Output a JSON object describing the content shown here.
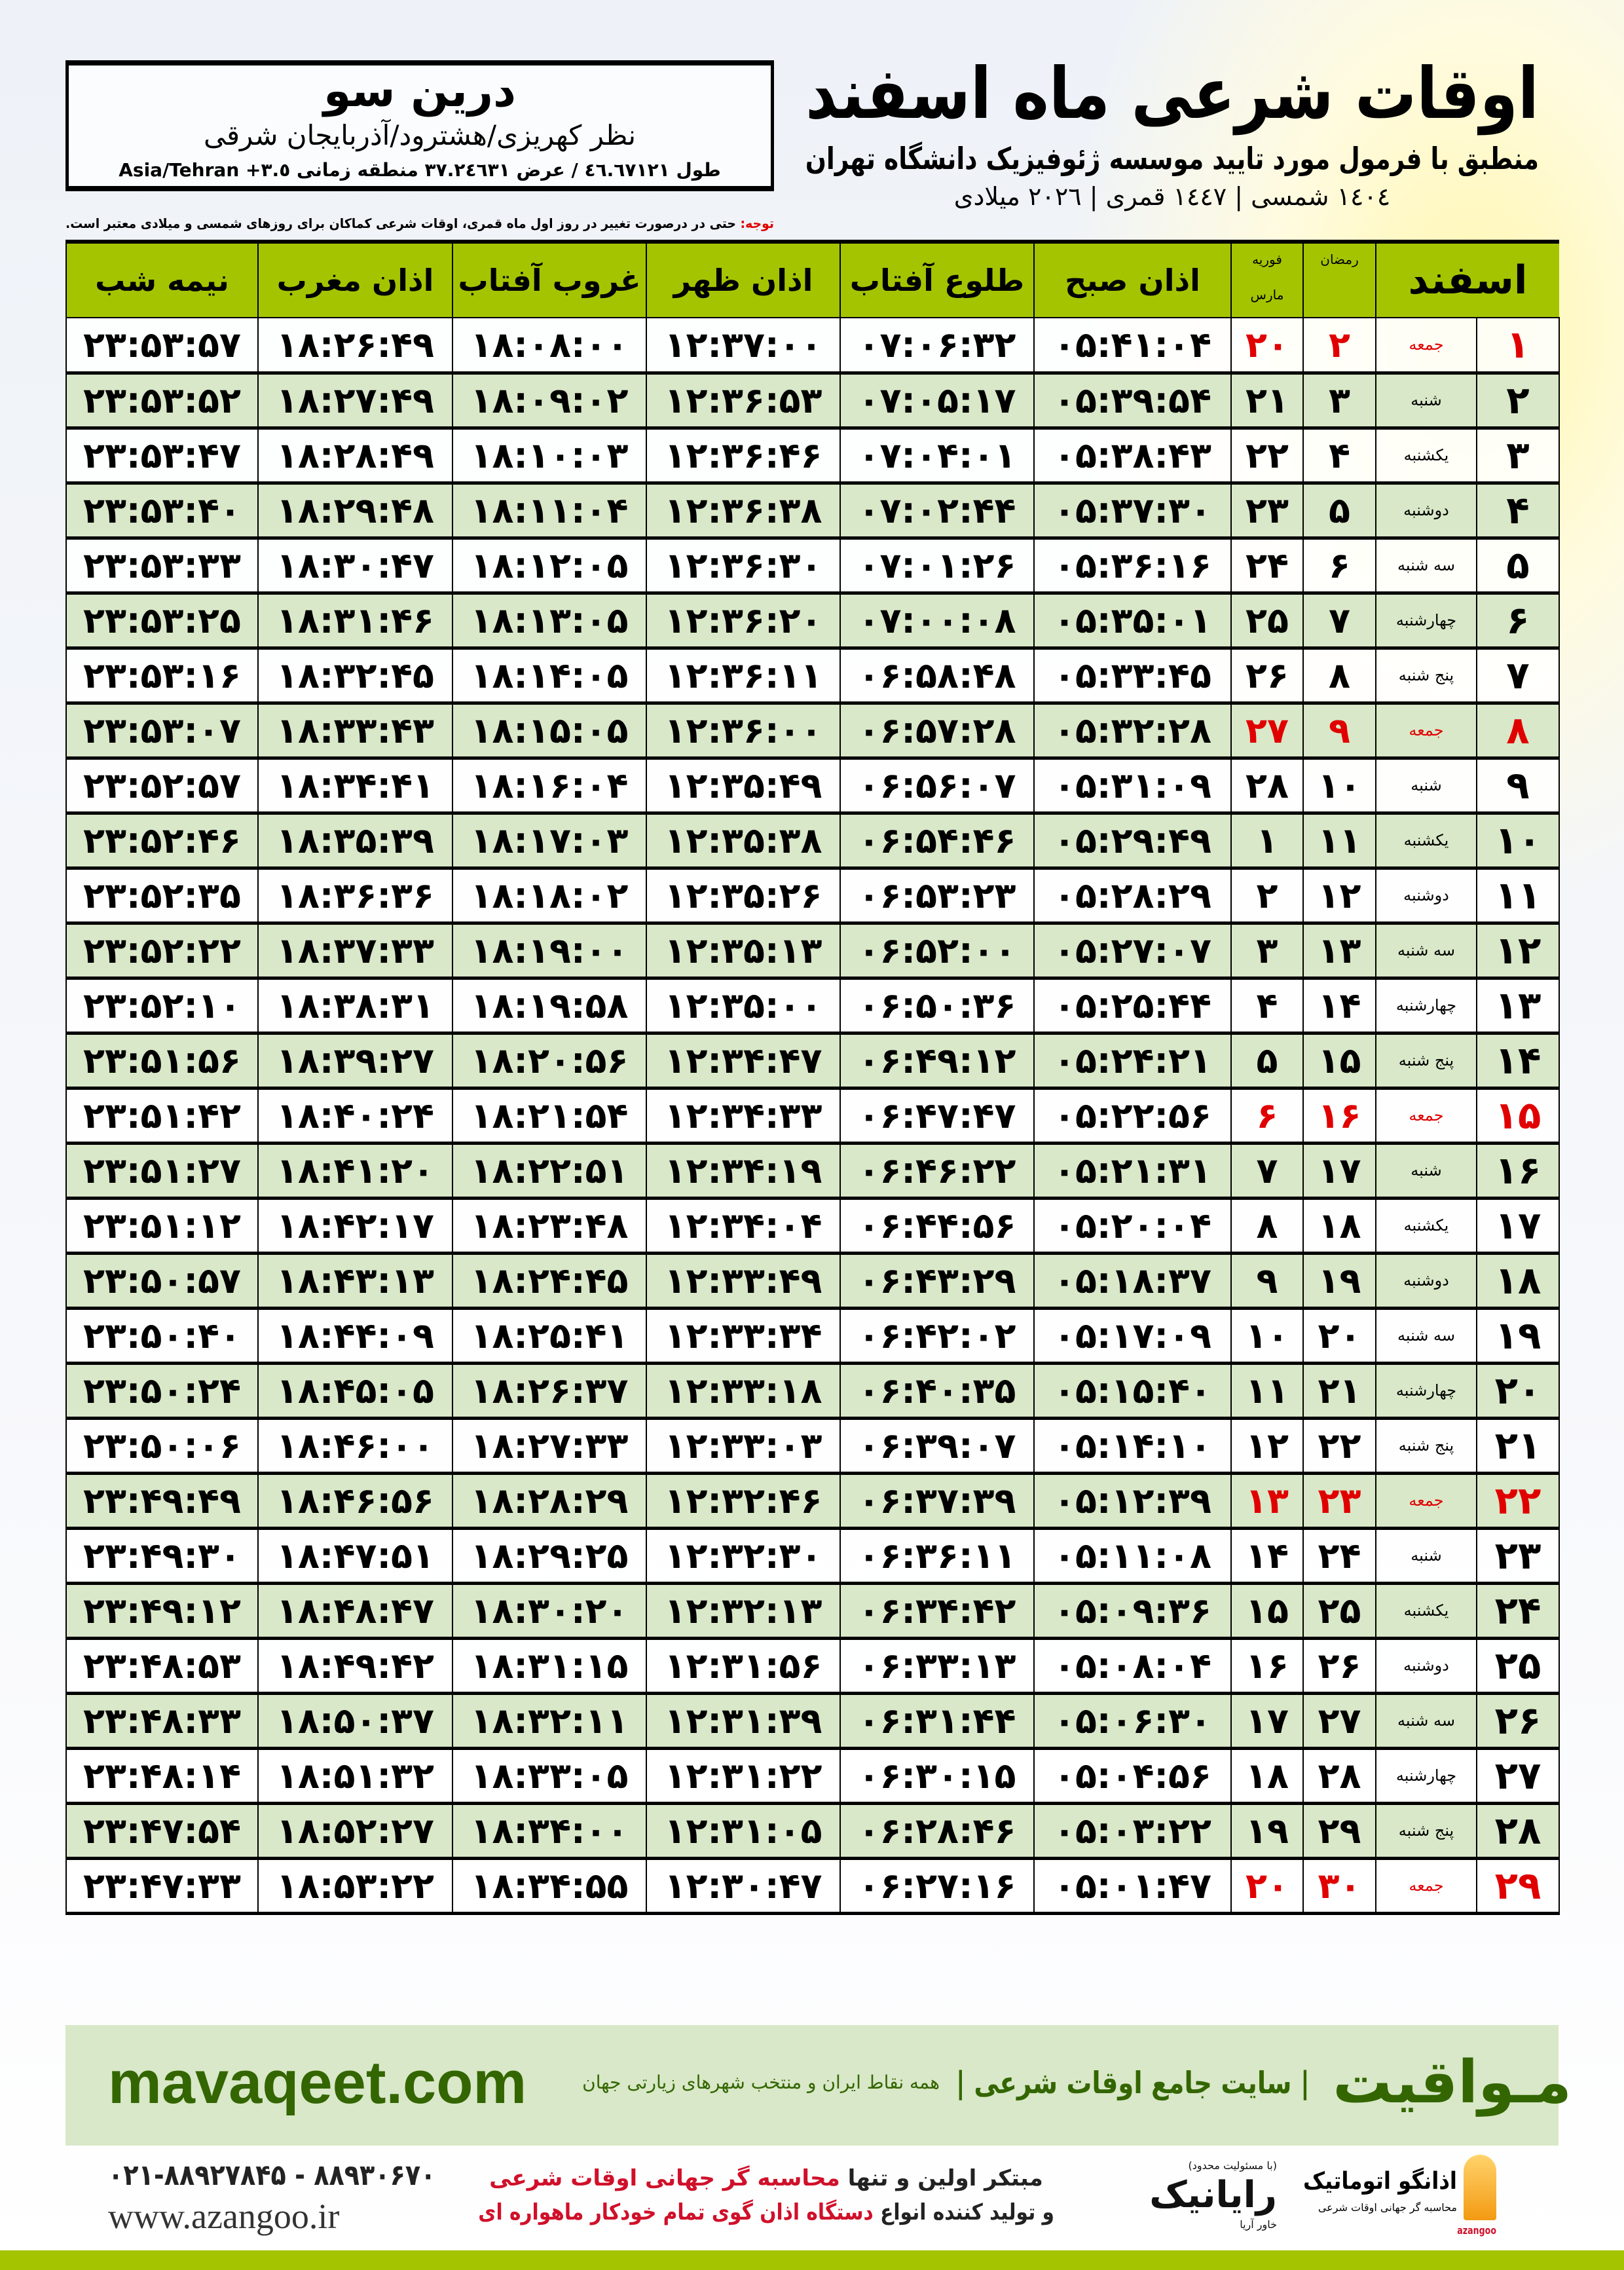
{
  "header": {
    "title": "اوقات شرعی ماه اسفند",
    "subtitle": "منطبق با فرمول مورد تایید موسسه ژئوفیزیک دانشگاه تهران",
    "years": "١٤٠٤ شمسی | ١٤٤٧ قمری | ٢٠٢٦ میلادی"
  },
  "location": {
    "name": "درین سو",
    "path": "نظر کهریزی/هشترود/آذربایجان شرقی",
    "coords": "طول ٤٦.٦٧١٢١ / عرض ٣٧.٢٤٦٣١ منطقه زمانی ٣.٥+ Asia/Tehran"
  },
  "note": {
    "label": "توجه:",
    "text": " حتی در درصورت تغییر در روز اول ماه قمری، اوقات شرعی کماکان برای روزهای شمسی و میلادی معتبر است."
  },
  "table": {
    "headers": {
      "month": "اسفند",
      "ramadan": "رمضان",
      "greg_top": "فوریه",
      "greg_bottom": "مارس",
      "fajr": "اذان صبح",
      "sunrise": "طلوع آفتاب",
      "dhuhr": "اذان ظهر",
      "sunset": "غروب آفتاب",
      "maghrib": "اذان مغرب",
      "midnight": "نیمه شب"
    },
    "holiday_color": "#e00000",
    "header_color": "#a5c400",
    "alt_row_color": "#d9e8c8",
    "rows": [
      [
        "۱",
        "جمعه",
        "۲",
        "۲۰",
        "۰۵:۴۱:۰۴",
        "۰۷:۰۶:۳۲",
        "۱۲:۳۷:۰۰",
        "۱۸:۰۸:۰۰",
        "۱۸:۲۶:۴۹",
        "۲۳:۵۳:۵۷"
      ],
      [
        "۲",
        "شنبه",
        "۳",
        "۲۱",
        "۰۵:۳۹:۵۴",
        "۰۷:۰۵:۱۷",
        "۱۲:۳۶:۵۳",
        "۱۸:۰۹:۰۲",
        "۱۸:۲۷:۴۹",
        "۲۳:۵۳:۵۲"
      ],
      [
        "۳",
        "یکشنبه",
        "۴",
        "۲۲",
        "۰۵:۳۸:۴۳",
        "۰۷:۰۴:۰۱",
        "۱۲:۳۶:۴۶",
        "۱۸:۱۰:۰۳",
        "۱۸:۲۸:۴۹",
        "۲۳:۵۳:۴۷"
      ],
      [
        "۴",
        "دوشنبه",
        "۵",
        "۲۳",
        "۰۵:۳۷:۳۰",
        "۰۷:۰۲:۴۴",
        "۱۲:۳۶:۳۸",
        "۱۸:۱۱:۰۴",
        "۱۸:۲۹:۴۸",
        "۲۳:۵۳:۴۰"
      ],
      [
        "۵",
        "سه شنبه",
        "۶",
        "۲۴",
        "۰۵:۳۶:۱۶",
        "۰۷:۰۱:۲۶",
        "۱۲:۳۶:۳۰",
        "۱۸:۱۲:۰۵",
        "۱۸:۳۰:۴۷",
        "۲۳:۵۳:۳۳"
      ],
      [
        "۶",
        "چهارشنبه",
        "۷",
        "۲۵",
        "۰۵:۳۵:۰۱",
        "۰۷:۰۰:۰۸",
        "۱۲:۳۶:۲۰",
        "۱۸:۱۳:۰۵",
        "۱۸:۳۱:۴۶",
        "۲۳:۵۳:۲۵"
      ],
      [
        "۷",
        "پنج شنبه",
        "۸",
        "۲۶",
        "۰۵:۳۳:۴۵",
        "۰۶:۵۸:۴۸",
        "۱۲:۳۶:۱۱",
        "۱۸:۱۴:۰۵",
        "۱۸:۳۲:۴۵",
        "۲۳:۵۳:۱۶"
      ],
      [
        "۸",
        "جمعه",
        "۹",
        "۲۷",
        "۰۵:۳۲:۲۸",
        "۰۶:۵۷:۲۸",
        "۱۲:۳۶:۰۰",
        "۱۸:۱۵:۰۵",
        "۱۸:۳۳:۴۳",
        "۲۳:۵۳:۰۷"
      ],
      [
        "۹",
        "شنبه",
        "۱۰",
        "۲۸",
        "۰۵:۳۱:۰۹",
        "۰۶:۵۶:۰۷",
        "۱۲:۳۵:۴۹",
        "۱۸:۱۶:۰۴",
        "۱۸:۳۴:۴۱",
        "۲۳:۵۲:۵۷"
      ],
      [
        "۱۰",
        "یکشنبه",
        "۱۱",
        "۱",
        "۰۵:۲۹:۴۹",
        "۰۶:۵۴:۴۶",
        "۱۲:۳۵:۳۸",
        "۱۸:۱۷:۰۳",
        "۱۸:۳۵:۳۹",
        "۲۳:۵۲:۴۶"
      ],
      [
        "۱۱",
        "دوشنبه",
        "۱۲",
        "۲",
        "۰۵:۲۸:۲۹",
        "۰۶:۵۳:۲۳",
        "۱۲:۳۵:۲۶",
        "۱۸:۱۸:۰۲",
        "۱۸:۳۶:۳۶",
        "۲۳:۵۲:۳۵"
      ],
      [
        "۱۲",
        "سه شنبه",
        "۱۳",
        "۳",
        "۰۵:۲۷:۰۷",
        "۰۶:۵۲:۰۰",
        "۱۲:۳۵:۱۳",
        "۱۸:۱۹:۰۰",
        "۱۸:۳۷:۳۳",
        "۲۳:۵۲:۲۲"
      ],
      [
        "۱۳",
        "چهارشنبه",
        "۱۴",
        "۴",
        "۰۵:۲۵:۴۴",
        "۰۶:۵۰:۳۶",
        "۱۲:۳۵:۰۰",
        "۱۸:۱۹:۵۸",
        "۱۸:۳۸:۳۱",
        "۲۳:۵۲:۱۰"
      ],
      [
        "۱۴",
        "پنج شنبه",
        "۱۵",
        "۵",
        "۰۵:۲۴:۲۱",
        "۰۶:۴۹:۱۲",
        "۱۲:۳۴:۴۷",
        "۱۸:۲۰:۵۶",
        "۱۸:۳۹:۲۷",
        "۲۳:۵۱:۵۶"
      ],
      [
        "۱۵",
        "جمعه",
        "۱۶",
        "۶",
        "۰۵:۲۲:۵۶",
        "۰۶:۴۷:۴۷",
        "۱۲:۳۴:۳۳",
        "۱۸:۲۱:۵۴",
        "۱۸:۴۰:۲۴",
        "۲۳:۵۱:۴۲"
      ],
      [
        "۱۶",
        "شنبه",
        "۱۷",
        "۷",
        "۰۵:۲۱:۳۱",
        "۰۶:۴۶:۲۲",
        "۱۲:۳۴:۱۹",
        "۱۸:۲۲:۵۱",
        "۱۸:۴۱:۲۰",
        "۲۳:۵۱:۲۷"
      ],
      [
        "۱۷",
        "یکشنبه",
        "۱۸",
        "۸",
        "۰۵:۲۰:۰۴",
        "۰۶:۴۴:۵۶",
        "۱۲:۳۴:۰۴",
        "۱۸:۲۳:۴۸",
        "۱۸:۴۲:۱۷",
        "۲۳:۵۱:۱۲"
      ],
      [
        "۱۸",
        "دوشنبه",
        "۱۹",
        "۹",
        "۰۵:۱۸:۳۷",
        "۰۶:۴۳:۲۹",
        "۱۲:۳۳:۴۹",
        "۱۸:۲۴:۴۵",
        "۱۸:۴۳:۱۳",
        "۲۳:۵۰:۵۷"
      ],
      [
        "۱۹",
        "سه شنبه",
        "۲۰",
        "۱۰",
        "۰۵:۱۷:۰۹",
        "۰۶:۴۲:۰۲",
        "۱۲:۳۳:۳۴",
        "۱۸:۲۵:۴۱",
        "۱۸:۴۴:۰۹",
        "۲۳:۵۰:۴۰"
      ],
      [
        "۲۰",
        "چهارشنبه",
        "۲۱",
        "۱۱",
        "۰۵:۱۵:۴۰",
        "۰۶:۴۰:۳۵",
        "۱۲:۳۳:۱۸",
        "۱۸:۲۶:۳۷",
        "۱۸:۴۵:۰۵",
        "۲۳:۵۰:۲۴"
      ],
      [
        "۲۱",
        "پنج شنبه",
        "۲۲",
        "۱۲",
        "۰۵:۱۴:۱۰",
        "۰۶:۳۹:۰۷",
        "۱۲:۳۳:۰۳",
        "۱۸:۲۷:۳۳",
        "۱۸:۴۶:۰۰",
        "۲۳:۵۰:۰۶"
      ],
      [
        "۲۲",
        "جمعه",
        "۲۳",
        "۱۳",
        "۰۵:۱۲:۳۹",
        "۰۶:۳۷:۳۹",
        "۱۲:۳۲:۴۶",
        "۱۸:۲۸:۲۹",
        "۱۸:۴۶:۵۶",
        "۲۳:۴۹:۴۹"
      ],
      [
        "۲۳",
        "شنبه",
        "۲۴",
        "۱۴",
        "۰۵:۱۱:۰۸",
        "۰۶:۳۶:۱۱",
        "۱۲:۳۲:۳۰",
        "۱۸:۲۹:۲۵",
        "۱۸:۴۷:۵۱",
        "۲۳:۴۹:۳۰"
      ],
      [
        "۲۴",
        "یکشنبه",
        "۲۵",
        "۱۵",
        "۰۵:۰۹:۳۶",
        "۰۶:۳۴:۴۲",
        "۱۲:۳۲:۱۳",
        "۱۸:۳۰:۲۰",
        "۱۸:۴۸:۴۷",
        "۲۳:۴۹:۱۲"
      ],
      [
        "۲۵",
        "دوشنبه",
        "۲۶",
        "۱۶",
        "۰۵:۰۸:۰۴",
        "۰۶:۳۳:۱۳",
        "۱۲:۳۱:۵۶",
        "۱۸:۳۱:۱۵",
        "۱۸:۴۹:۴۲",
        "۲۳:۴۸:۵۳"
      ],
      [
        "۲۶",
        "سه شنبه",
        "۲۷",
        "۱۷",
        "۰۵:۰۶:۳۰",
        "۰۶:۳۱:۴۴",
        "۱۲:۳۱:۳۹",
        "۱۸:۳۲:۱۱",
        "۱۸:۵۰:۳۷",
        "۲۳:۴۸:۳۳"
      ],
      [
        "۲۷",
        "چهارشنبه",
        "۲۸",
        "۱۸",
        "۰۵:۰۴:۵۶",
        "۰۶:۳۰:۱۵",
        "۱۲:۳۱:۲۲",
        "۱۸:۳۳:۰۵",
        "۱۸:۵۱:۳۲",
        "۲۳:۴۸:۱۴"
      ],
      [
        "۲۸",
        "پنج شنبه",
        "۲۹",
        "۱۹",
        "۰۵:۰۳:۲۲",
        "۰۶:۲۸:۴۶",
        "۱۲:۳۱:۰۵",
        "۱۸:۳۴:۰۰",
        "۱۸:۵۲:۲۷",
        "۲۳:۴۷:۵۴"
      ],
      [
        "۲۹",
        "جمعه",
        "۳۰",
        "۲۰",
        "۰۵:۰۱:۴۷",
        "۰۶:۲۷:۱۶",
        "۱۲:۳۰:۴۷",
        "۱۸:۳۴:۵۵",
        "۱۸:۵۳:۲۲",
        "۲۳:۴۷:۳۳"
      ]
    ]
  },
  "footer": {
    "site_name": "مـواقیت",
    "site_tag": "| سایت جامع اوقات شرعی |",
    "site_tag2": "همه نقاط ایران و منتخب شهرهای زیارتی جهان",
    "site_url": "mavaqeet.com",
    "phone": "۰۲۱-۸۸۹۲۷۸۴۵ - ۸۸۹۳۰۶۷۰",
    "web": "www.azangoo.ir",
    "promo_1a": "مبتکر اولین و تنها ",
    "promo_1b": "محاسبه گر جهانی اوقات شرعی",
    "promo_2a": "و تولید کننده انواع ",
    "promo_2b": "دستگاه اذان گوی تمام خودکار ماهواره ای",
    "rayanik_note": "(با مسئولیت محدود)",
    "rayanik": "رایانیک",
    "rayanik_sub": "خاور آریا",
    "azangoo_fa": "اذانگو اتوماتیک",
    "azangoo_tag": "محاسبه گر جهانی اوقات شرعی",
    "azangoo_en": "azangoo"
  }
}
